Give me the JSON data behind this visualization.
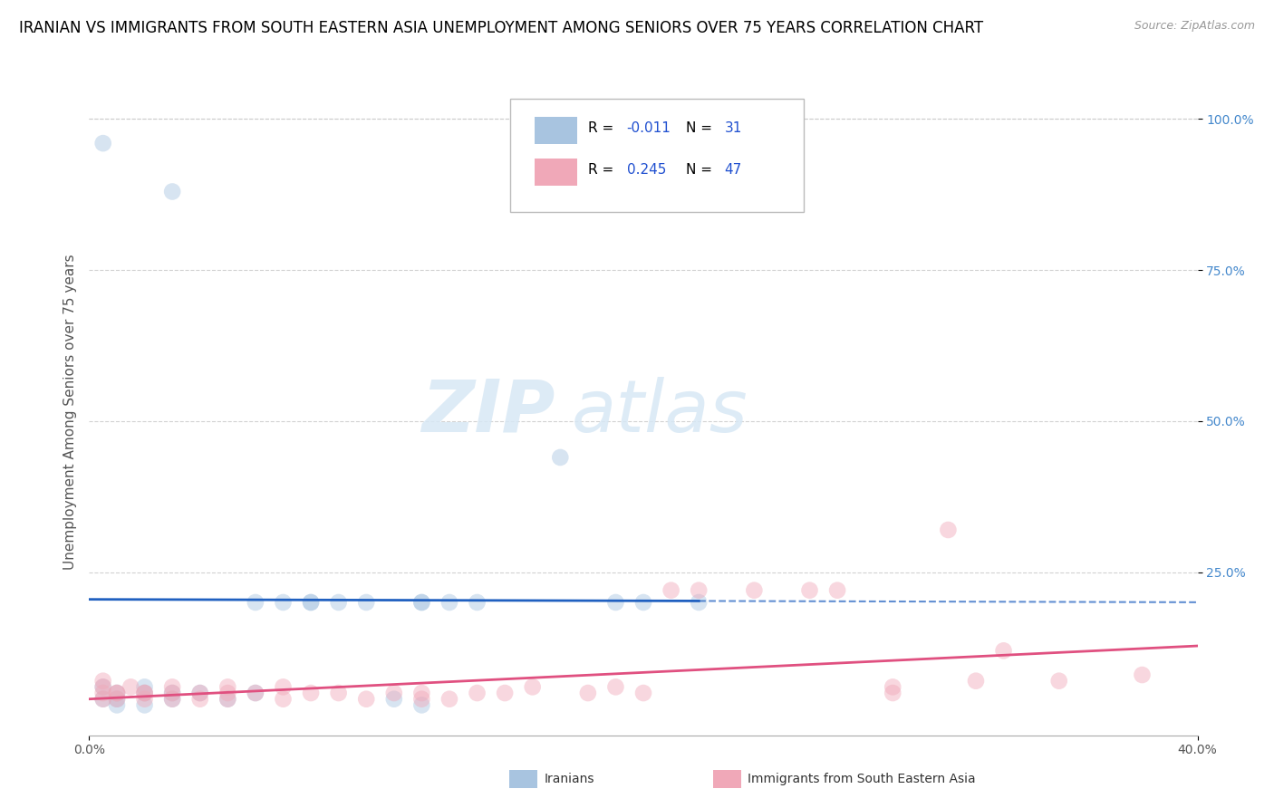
{
  "title": "IRANIAN VS IMMIGRANTS FROM SOUTH EASTERN ASIA UNEMPLOYMENT AMONG SENIORS OVER 75 YEARS CORRELATION CHART",
  "source": "Source: ZipAtlas.com",
  "ylabel": "Unemployment Among Seniors over 75 years",
  "xlim": [
    0.0,
    0.4
  ],
  "ylim": [
    -0.02,
    1.05
  ],
  "xticks": [
    0.0,
    0.4
  ],
  "xtick_labels": [
    "0.0%",
    "40.0%"
  ],
  "yticks": [
    0.25,
    0.5,
    0.75,
    1.0
  ],
  "ytick_labels": [
    "25.0%",
    "50.0%",
    "75.0%",
    "100.0%"
  ],
  "blue_R": -0.011,
  "blue_N": 31,
  "pink_R": 0.245,
  "pink_N": 47,
  "blue_color": "#a8c4e0",
  "pink_color": "#f0a8b8",
  "blue_line_color": "#2060c0",
  "pink_line_color": "#e05080",
  "blue_points": [
    [
      0.005,
      0.96
    ],
    [
      0.03,
      0.88
    ],
    [
      0.005,
      0.06
    ],
    [
      0.005,
      0.04
    ],
    [
      0.01,
      0.05
    ],
    [
      0.01,
      0.03
    ],
    [
      0.01,
      0.04
    ],
    [
      0.02,
      0.05
    ],
    [
      0.02,
      0.03
    ],
    [
      0.02,
      0.06
    ],
    [
      0.03,
      0.04
    ],
    [
      0.03,
      0.05
    ],
    [
      0.04,
      0.05
    ],
    [
      0.05,
      0.04
    ],
    [
      0.06,
      0.05
    ],
    [
      0.06,
      0.2
    ],
    [
      0.07,
      0.2
    ],
    [
      0.08,
      0.2
    ],
    [
      0.08,
      0.2
    ],
    [
      0.09,
      0.2
    ],
    [
      0.1,
      0.2
    ],
    [
      0.11,
      0.04
    ],
    [
      0.12,
      0.2
    ],
    [
      0.12,
      0.2
    ],
    [
      0.13,
      0.2
    ],
    [
      0.14,
      0.2
    ],
    [
      0.17,
      0.44
    ],
    [
      0.19,
      0.2
    ],
    [
      0.22,
      0.2
    ],
    [
      0.12,
      0.03
    ],
    [
      0.2,
      0.2
    ]
  ],
  "pink_points": [
    [
      0.005,
      0.07
    ],
    [
      0.005,
      0.05
    ],
    [
      0.005,
      0.04
    ],
    [
      0.005,
      0.06
    ],
    [
      0.01,
      0.05
    ],
    [
      0.01,
      0.04
    ],
    [
      0.01,
      0.05
    ],
    [
      0.015,
      0.06
    ],
    [
      0.02,
      0.05
    ],
    [
      0.02,
      0.04
    ],
    [
      0.02,
      0.05
    ],
    [
      0.03,
      0.06
    ],
    [
      0.03,
      0.05
    ],
    [
      0.03,
      0.04
    ],
    [
      0.04,
      0.05
    ],
    [
      0.04,
      0.04
    ],
    [
      0.05,
      0.05
    ],
    [
      0.05,
      0.06
    ],
    [
      0.05,
      0.04
    ],
    [
      0.06,
      0.05
    ],
    [
      0.07,
      0.04
    ],
    [
      0.07,
      0.06
    ],
    [
      0.08,
      0.05
    ],
    [
      0.09,
      0.05
    ],
    [
      0.1,
      0.04
    ],
    [
      0.11,
      0.05
    ],
    [
      0.12,
      0.04
    ],
    [
      0.12,
      0.05
    ],
    [
      0.13,
      0.04
    ],
    [
      0.14,
      0.05
    ],
    [
      0.15,
      0.05
    ],
    [
      0.16,
      0.06
    ],
    [
      0.18,
      0.05
    ],
    [
      0.19,
      0.06
    ],
    [
      0.2,
      0.05
    ],
    [
      0.21,
      0.22
    ],
    [
      0.22,
      0.22
    ],
    [
      0.24,
      0.22
    ],
    [
      0.26,
      0.22
    ],
    [
      0.27,
      0.22
    ],
    [
      0.29,
      0.05
    ],
    [
      0.29,
      0.06
    ],
    [
      0.31,
      0.32
    ],
    [
      0.32,
      0.07
    ],
    [
      0.33,
      0.12
    ],
    [
      0.35,
      0.07
    ],
    [
      0.38,
      0.08
    ]
  ],
  "blue_line_y_intercept": 0.205,
  "blue_line_slope": -0.012,
  "pink_line_y_intercept": 0.04,
  "pink_line_slope": 0.22,
  "watermark_zip": "ZIP",
  "watermark_atlas": "atlas",
  "background_color": "#ffffff",
  "grid_color": "#cccccc",
  "title_fontsize": 12,
  "axis_label_fontsize": 11,
  "tick_fontsize": 10,
  "legend_label_color": "#2050d0",
  "dot_size": 180,
  "dot_alpha": 0.45
}
